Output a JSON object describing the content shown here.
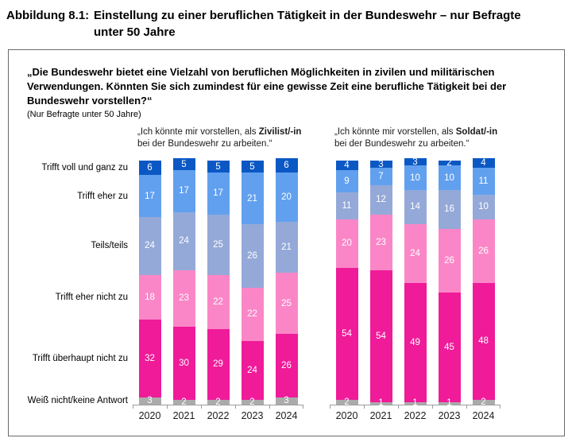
{
  "figure": {
    "label": "Abbildung 8.1:",
    "title": "Einstellung zu einer beruflichen Tätigkeit in der Bundeswehr – nur Befragte unter 50 Jahre"
  },
  "question": {
    "text": "„Die Bundeswehr bietet eine Vielzahl von beruflichen Möglichkeiten in zivilen und militärischen Verwendungen. Könnten Sie sich zumindest für eine gewisse Zeit eine berufliche Tätigkeit bei der Bundeswehr vorstellen?“",
    "note": "(Nur Befragte unter 50 Jahre)"
  },
  "chart_data": {
    "type": "bar",
    "subtype": "stacked-100-percent-columns, two panels",
    "unit": "percent",
    "title": "Einstellung zu einer beruflichen Tätigkeit in der Bundeswehr – nur Befragte unter 50 Jahre",
    "categories": [
      "2020",
      "2021",
      "2022",
      "2023",
      "2024"
    ],
    "stack_order_top_to_bottom": [
      "Trifft voll und ganz zu",
      "Trifft eher zu",
      "Teils/teils",
      "Trifft eher nicht zu",
      "Trifft überhaupt nicht zu",
      "Weiß nicht/keine Antwort"
    ],
    "colors_top_to_bottom": [
      "#0b58c4",
      "#61a0ef",
      "#94a9d8",
      "#fb86c7",
      "#ef1b99",
      "#ababab"
    ],
    "axis_color": "#9d9d9d",
    "legend_position": "left-row-labels",
    "grid": false,
    "ylim": [
      0,
      100
    ],
    "panels": [
      {
        "id": "zivilist",
        "header": {
          "prefix": "„Ich könnte mir vorstellen, als ",
          "bold": "Zivilist/-in",
          "line2": "bei der Bundeswehr zu arbeiten.“"
        },
        "columns": [
          {
            "year": "2020",
            "values": [
              6,
              17,
              24,
              18,
              32,
              3
            ]
          },
          {
            "year": "2021",
            "values": [
              5,
              17,
              24,
              23,
              30,
              2
            ]
          },
          {
            "year": "2022",
            "values": [
              5,
              17,
              25,
              22,
              29,
              2
            ]
          },
          {
            "year": "2023",
            "values": [
              5,
              21,
              26,
              22,
              24,
              2
            ]
          },
          {
            "year": "2024",
            "values": [
              6,
              20,
              21,
              25,
              26,
              3
            ]
          }
        ]
      },
      {
        "id": "soldat",
        "header": {
          "prefix": "„Ich könnte mir vorstellen, als ",
          "bold": "Soldat/-in",
          "line2": "bei der Bundeswehr zu arbeiten.“"
        },
        "columns": [
          {
            "year": "2020",
            "values": [
              4,
              9,
              11,
              20,
              54,
              2
            ]
          },
          {
            "year": "2021",
            "values": [
              3,
              7,
              12,
              23,
              54,
              1
            ]
          },
          {
            "year": "2022",
            "values": [
              3,
              10,
              14,
              24,
              49,
              1
            ]
          },
          {
            "year": "2023",
            "values": [
              2,
              10,
              16,
              26,
              45,
              1
            ]
          },
          {
            "year": "2024",
            "values": [
              4,
              11,
              10,
              26,
              48,
              2
            ]
          }
        ]
      }
    ]
  }
}
